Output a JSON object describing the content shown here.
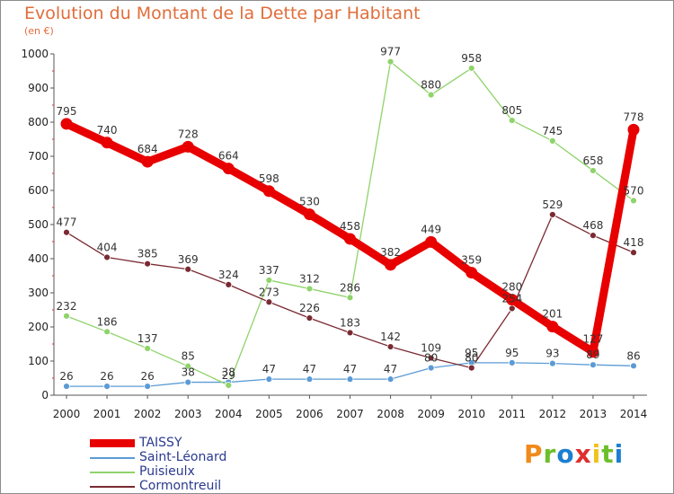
{
  "header": {
    "title": "Evolution du Montant de la Dette par Habitant",
    "subtitle": "(en €)"
  },
  "logo": {
    "text": "Proxiti",
    "letter_colors": [
      "#f08a1c",
      "#6cbf2a",
      "#1c7fd1",
      "#e02d2d",
      "#f0c21c",
      "#6cbf2a",
      "#1c7fd1"
    ]
  },
  "chart_data": {
    "type": "line",
    "title": "Evolution du Montant de la Dette par Habitant",
    "subtitle": "(en €)",
    "xlabel": "",
    "ylabel": "",
    "x": [
      "2000",
      "2001",
      "2002",
      "2003",
      "2004",
      "2005",
      "2006",
      "2007",
      "2008",
      "2009",
      "2010",
      "2011",
      "2012",
      "2013",
      "2014"
    ],
    "ylim": [
      0,
      1000
    ],
    "yticks": [
      0,
      100,
      200,
      300,
      400,
      500,
      600,
      700,
      800,
      900,
      1000
    ],
    "grid": false,
    "legend": "bottom-left",
    "series": [
      {
        "name": "TAISSY",
        "color": "#e80000",
        "bold": true,
        "values": [
          795,
          740,
          684,
          728,
          664,
          598,
          530,
          458,
          382,
          449,
          359,
          280,
          201,
          127,
          778
        ]
      },
      {
        "name": "Saint-Léonard",
        "color": "#5b9bd5",
        "bold": false,
        "values": [
          26,
          26,
          26,
          38,
          38,
          47,
          47,
          47,
          47,
          80,
          95,
          95,
          93,
          89,
          86
        ]
      },
      {
        "name": "Puisieulx",
        "color": "#8fd36a",
        "bold": false,
        "values": [
          232,
          186,
          137,
          85,
          29,
          337,
          312,
          286,
          977,
          880,
          958,
          805,
          745,
          658,
          570
        ]
      },
      {
        "name": "Cormontreuil",
        "color": "#7a2a32",
        "bold": false,
        "values": [
          477,
          404,
          385,
          369,
          324,
          273,
          226,
          183,
          142,
          109,
          80,
          254,
          529,
          468,
          418
        ]
      }
    ]
  }
}
